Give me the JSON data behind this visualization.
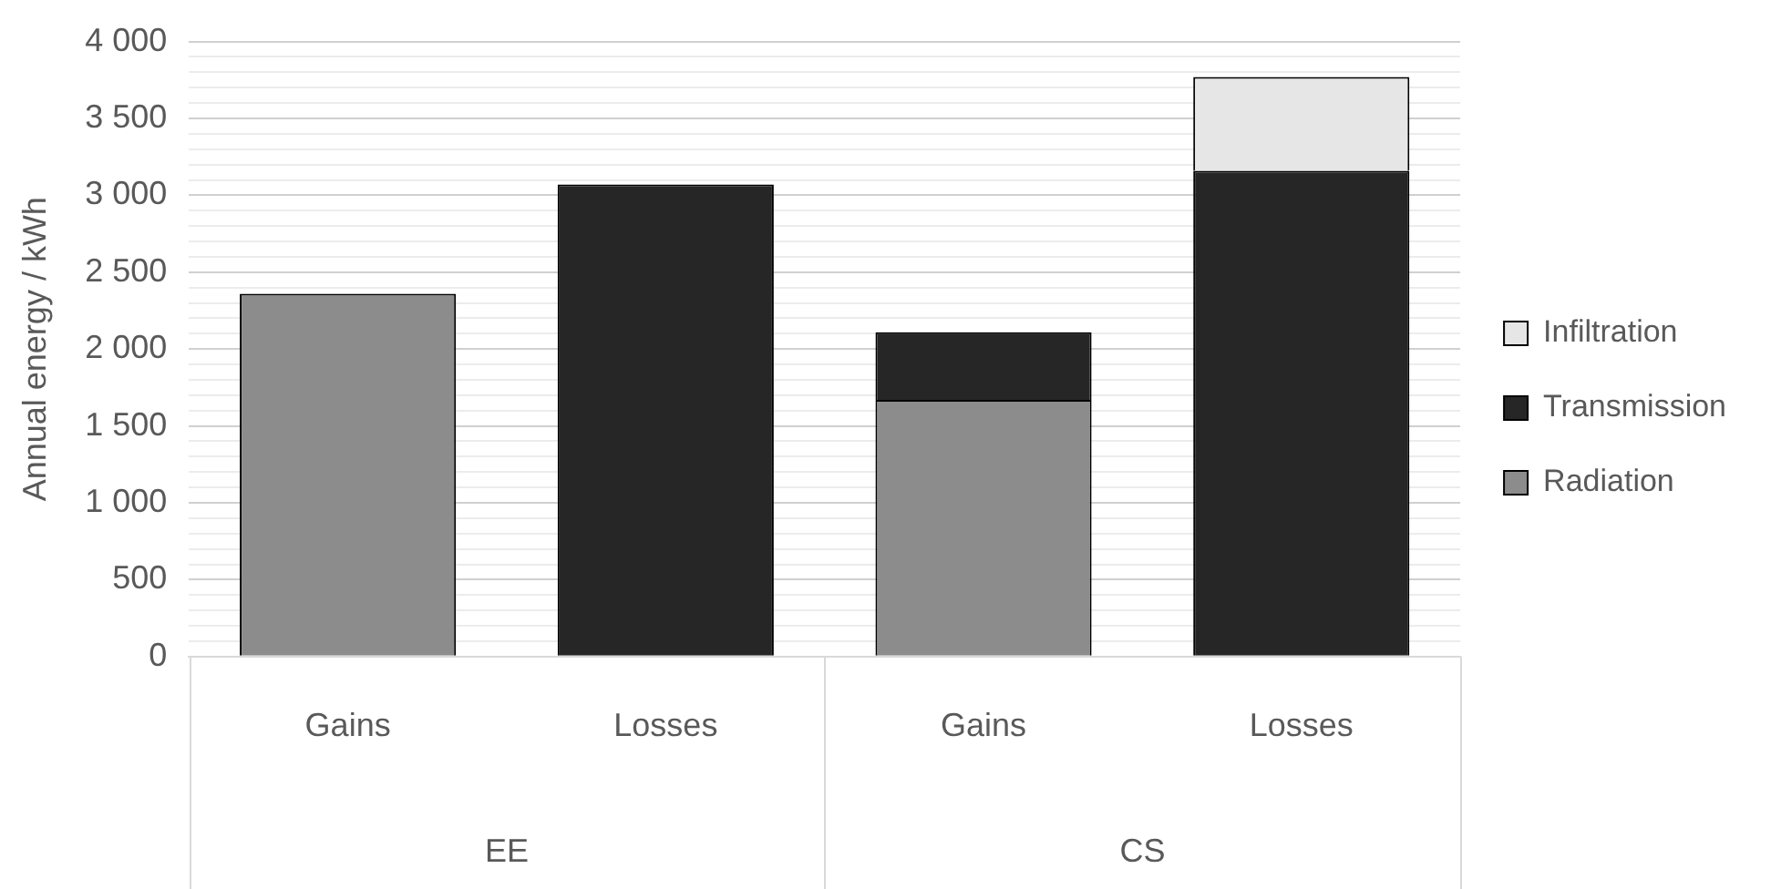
{
  "chart_data": {
    "type": "bar",
    "stacked": true,
    "ylabel": "Annual energy / kWh",
    "categories": [
      "Gains",
      "Losses",
      "Gains",
      "Losses"
    ],
    "annotations": [
      "EE",
      "CS"
    ],
    "series": [
      {
        "name": "Radiation",
        "color": "#8c8c8c",
        "values": [
          2360,
          null,
          1670,
          null
        ]
      },
      {
        "name": "Transmission",
        "color": "#262626",
        "values": [
          null,
          3070,
          440,
          3160
        ]
      },
      {
        "name": "Infiltration",
        "color": "#e6e6e6",
        "values": [
          null,
          null,
          null,
          610
        ]
      }
    ],
    "ylim": [
      0,
      4000
    ],
    "yticks": [
      {
        "value": 0,
        "label": "0"
      },
      {
        "value": 100,
        "label": null
      },
      {
        "value": 200,
        "label": null
      },
      {
        "value": 300,
        "label": null
      },
      {
        "value": 400,
        "label": null
      },
      {
        "value": 500,
        "label": "500"
      },
      {
        "value": 600,
        "label": null
      },
      {
        "value": 700,
        "label": null
      },
      {
        "value": 800,
        "label": null
      },
      {
        "value": 900,
        "label": null
      },
      {
        "value": 1000,
        "label": "1 000"
      },
      {
        "value": 1100,
        "label": null
      },
      {
        "value": 1200,
        "label": null
      },
      {
        "value": 1300,
        "label": null
      },
      {
        "value": 1400,
        "label": null
      },
      {
        "value": 1500,
        "label": "1 500"
      },
      {
        "value": 1600,
        "label": null
      },
      {
        "value": 1700,
        "label": null
      },
      {
        "value": 1800,
        "label": null
      },
      {
        "value": 1900,
        "label": null
      },
      {
        "value": 2000,
        "label": "2 000"
      },
      {
        "value": 2100,
        "label": null
      },
      {
        "value": 2200,
        "label": null
      },
      {
        "value": 2300,
        "label": null
      },
      {
        "value": 2400,
        "label": null
      },
      {
        "value": 2500,
        "label": "2 500"
      },
      {
        "value": 2600,
        "label": null
      },
      {
        "value": 2700,
        "label": null
      },
      {
        "value": 2800,
        "label": null
      },
      {
        "value": 2900,
        "label": null
      },
      {
        "value": 3000,
        "label": "3 000"
      },
      {
        "value": 3100,
        "label": null
      },
      {
        "value": 3200,
        "label": null
      },
      {
        "value": 3300,
        "label": null
      },
      {
        "value": 3400,
        "label": null
      },
      {
        "value": 3500,
        "label": "3 500"
      },
      {
        "value": 3600,
        "label": null
      },
      {
        "value": 3700,
        "label": null
      },
      {
        "value": 3800,
        "label": null
      },
      {
        "value": 3900,
        "label": null
      },
      {
        "value": 4000,
        "label": "4 000"
      }
    ],
    "grid": "y",
    "legend": "right"
  }
}
